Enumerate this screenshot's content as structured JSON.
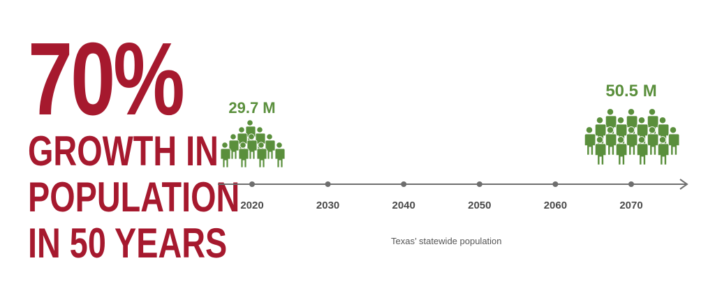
{
  "headline": {
    "percent": "70%",
    "lines": [
      "GROWTH IN",
      "POPULATION",
      "IN 50 YEARS"
    ],
    "color": "#a6192e"
  },
  "timeline": {
    "years": [
      "2020",
      "2030",
      "2040",
      "2050",
      "2060",
      "2070"
    ],
    "axis_color": "#6e6e6e"
  },
  "figures": {
    "icon": "people-group-icon",
    "color": "#5a8f3c",
    "start": {
      "label": "29.7 M",
      "year": "2020"
    },
    "end": {
      "label": "50.5 M",
      "year": "2070"
    }
  },
  "caption": "Texas’ statewide population"
}
